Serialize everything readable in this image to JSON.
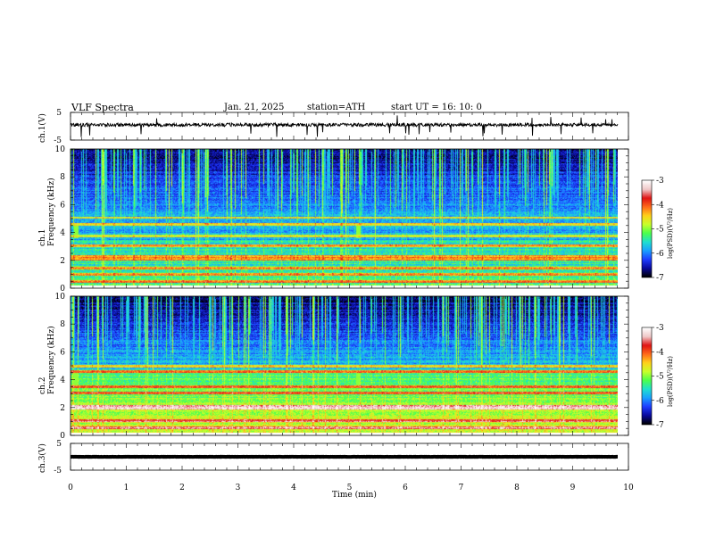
{
  "header": {
    "title": "VLF  Spectra",
    "date": "Jan. 21, 2025",
    "station": "station=ATH",
    "start": "start  UT  =   16: 10: 0"
  },
  "chart_data": {
    "type": "heatmap",
    "title": "VLF  Spectra",
    "xlabel": "Time  (min)",
    "xlim": [
      0,
      10
    ],
    "x_ticks": [
      "0",
      "1",
      "2",
      "3",
      "4",
      "5",
      "6",
      "7",
      "8",
      "9",
      "10"
    ],
    "data_end_min": 9.8,
    "panels": [
      {
        "name": "ch.1 waveform",
        "kind": "waveform",
        "ylabel": "ch.1(V)",
        "ylim": [
          -5,
          5
        ],
        "y_ticks": [
          "5",
          "-5"
        ],
        "baseline_v": 0.5,
        "noise_amplitude_v": 1.2
      },
      {
        "name": "ch.1 spectrogram",
        "kind": "spectrogram",
        "ylabel_line1": "ch.1",
        "ylabel_line2": "Frequency  (kHz)",
        "ylim_khz": [
          0,
          10
        ],
        "y_ticks": [
          "0",
          "2",
          "4",
          "6",
          "8",
          "10"
        ],
        "colorbar": {
          "label": "log(PSD)(V²/Hz)",
          "range": [
            -7,
            -3
          ],
          "ticks": [
            "-3",
            "-4",
            "-5",
            "-6",
            "-7"
          ]
        },
        "bright_lines_khz": [
          0.5,
          1.0,
          1.5,
          2.1,
          2.3,
          3.1,
          3.8,
          4.6,
          5.1
        ],
        "transient_events_min": [
          0.1,
          5.15
        ]
      },
      {
        "name": "ch.2 spectrogram",
        "kind": "spectrogram",
        "ylabel_line1": "ch.2",
        "ylabel_line2": "Frequency  (kHz)",
        "ylim_khz": [
          0,
          10
        ],
        "y_ticks": [
          "0",
          "2",
          "4",
          "6",
          "8",
          "10"
        ],
        "colorbar": {
          "label": "log(PSD)(V²/Hz)",
          "range": [
            -7,
            -3
          ],
          "ticks": [
            "-3",
            "-4",
            "-5",
            "-6",
            "-7"
          ]
        },
        "bright_lines_khz": [
          0.6,
          1.1,
          2.0,
          2.1,
          3.1,
          3.5,
          4.6,
          5.0
        ],
        "transient_events_min": [
          0.1,
          5.15
        ]
      },
      {
        "name": "ch.3 waveform",
        "kind": "waveform",
        "ylabel": "ch.3(V)",
        "ylim": [
          -5,
          5
        ],
        "y_ticks": [
          "5",
          "-5"
        ],
        "baseline_v": 0.0,
        "noise_amplitude_v": 0.1
      }
    ],
    "colormap": [
      "#000000",
      "#0a0a9c",
      "#1f3cff",
      "#1aa0ff",
      "#1fe0d0",
      "#4cff4c",
      "#c8ff2a",
      "#ffd21a",
      "#ff6a1a",
      "#e01414",
      "#f0c8c8",
      "#ffffff"
    ]
  }
}
